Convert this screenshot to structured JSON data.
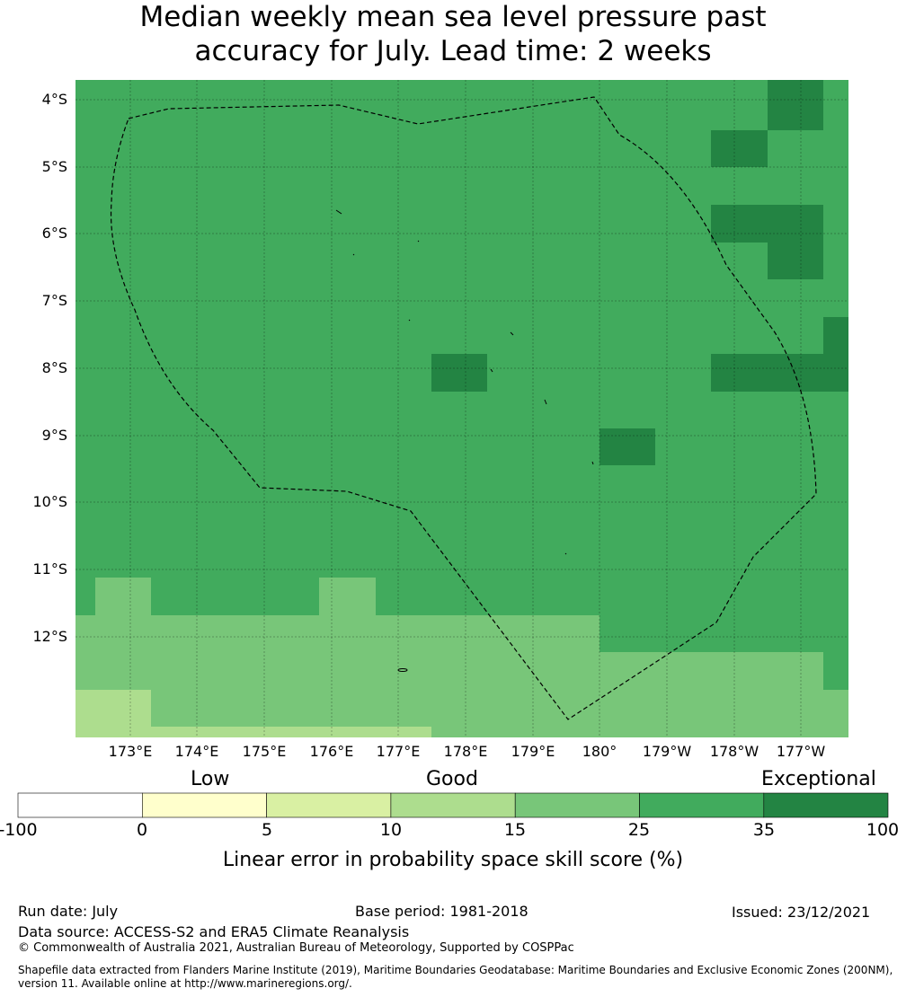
{
  "title_line1": "Median weekly mean sea level pressure past",
  "title_line2": "accuracy for July. Lead time: 2 weeks",
  "map": {
    "base_color": "#41ab5d",
    "lat_labels": [
      "4°S",
      "5°S",
      "6°S",
      "7°S",
      "8°S",
      "9°S",
      "10°S",
      "11°S",
      "12°S"
    ],
    "lon_labels": [
      "173°E",
      "174°E",
      "175°E",
      "176°E",
      "177°E",
      "178°E",
      "179°E",
      "180°",
      "179°W",
      "178°W",
      "177°W"
    ]
  },
  "colorbar": {
    "categories": {
      "low": "Low",
      "good": "Good",
      "exceptional": "Exceptional"
    },
    "ticks": [
      "-100",
      "0",
      "5",
      "10",
      "15",
      "25",
      "35",
      "100"
    ],
    "colors": [
      "#ffffff",
      "#ffffcc",
      "#d9f0a3",
      "#addd8e",
      "#78c679",
      "#41ab5d",
      "#238443"
    ],
    "label": "Linear error in probability space skill score (%)"
  },
  "footer": {
    "run_date": "Run date: July",
    "base_period": "Base period: 1981-2018",
    "issued": "Issued: 23/12/2021",
    "data_source": "Data source: ACCESS-S2 and ERA5 Climate Reanalysis",
    "copyright": "© Commonwealth of Australia 2021, Australian Bureau of Meteorology, Supported by COSPPac",
    "shapefile_line1": "Shapefile data extracted from Flanders Marine Institute (2019), Maritime Boundaries Geodatabase: Maritime Boundaries and Exclusive Economic Zones (200NM),",
    "shapefile_line2": "version 11. Available online at http://www.marineregions.org/."
  }
}
